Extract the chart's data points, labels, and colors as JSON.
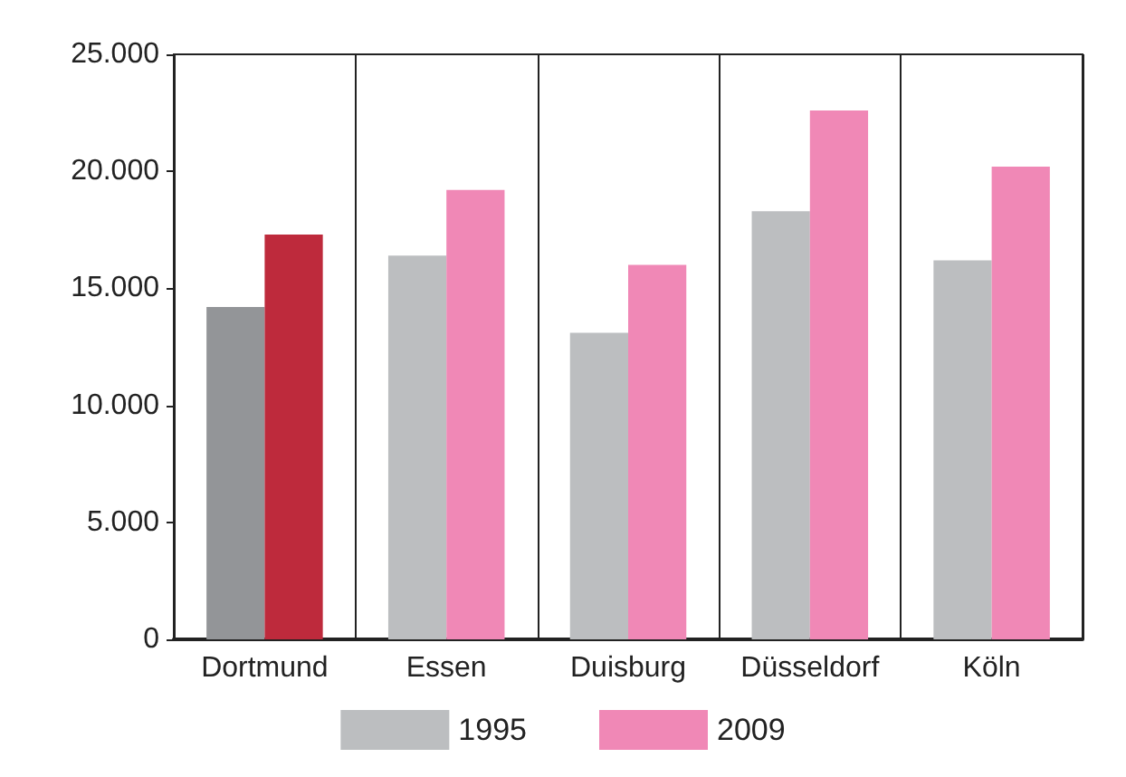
{
  "chart_data": {
    "type": "bar",
    "categories": [
      "Dortmund",
      "Essen",
      "Duisburg",
      "Düsseldorf",
      "Köln"
    ],
    "series": [
      {
        "name": "1995",
        "color": "#bcbec0",
        "colors": [
          "#939598",
          "#bcbec0",
          "#bcbec0",
          "#bcbec0",
          "#bcbec0"
        ],
        "values": [
          14200,
          16400,
          13100,
          18300,
          16200
        ]
      },
      {
        "name": "2009",
        "color": "#f088b6",
        "colors": [
          "#be2a3c",
          "#f088b6",
          "#f088b6",
          "#f088b6",
          "#f088b6"
        ],
        "values": [
          17300,
          19200,
          16000,
          22600,
          20200
        ]
      }
    ],
    "ylim": [
      0,
      25000
    ],
    "yticks": [
      0,
      {
        "value": 5000,
        "label": "5.000"
      },
      {
        "value": 10000,
        "label": "10.000"
      },
      {
        "value": 15000,
        "label": "15.000"
      },
      {
        "value": 20000,
        "label": "20.000"
      },
      {
        "value": 25000,
        "label": "25.000"
      }
    ],
    "grid": "x",
    "legend": "bottom"
  }
}
